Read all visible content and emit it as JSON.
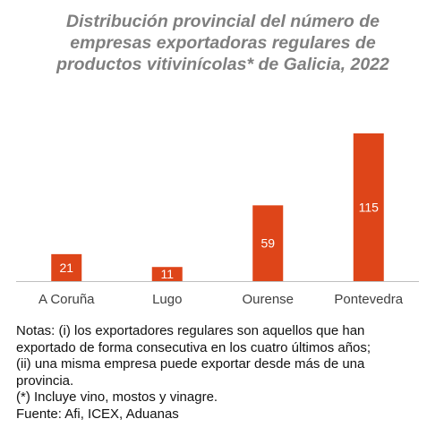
{
  "colors": {
    "bar": "#de4519",
    "title": "#7f7f7f",
    "axis": "#bfbfbf",
    "bar_label": "#ffffff",
    "category_label": "#404040",
    "notes_text": "#111111"
  },
  "chart_data": {
    "type": "bar",
    "title_lines": [
      "Distribución provincial del número de",
      "empresas exportadoras regulares de",
      "productos vitivinícolas* de Galicia, 2022"
    ],
    "categories": [
      "A Coruña",
      "Lugo",
      "Ourense",
      "Pontevedra"
    ],
    "values": [
      21,
      11,
      59,
      115
    ],
    "data_labels": [
      "21",
      "11",
      "59",
      "115"
    ],
    "ylim": [
      0,
      115
    ],
    "grid": false,
    "legend": "none"
  },
  "notes": {
    "lines": [
      "Notas: (i) los exportadores regulares son aquellos que han",
      "exportado de forma consecutiva en los cuatro últimos años;",
      "(ii) una misma empresa puede exportar desde más de una",
      "provincia.",
      "(*) Incluye vino, mostos y vinagre.",
      "Fuente: Afi, ICEX, Aduanas"
    ]
  }
}
